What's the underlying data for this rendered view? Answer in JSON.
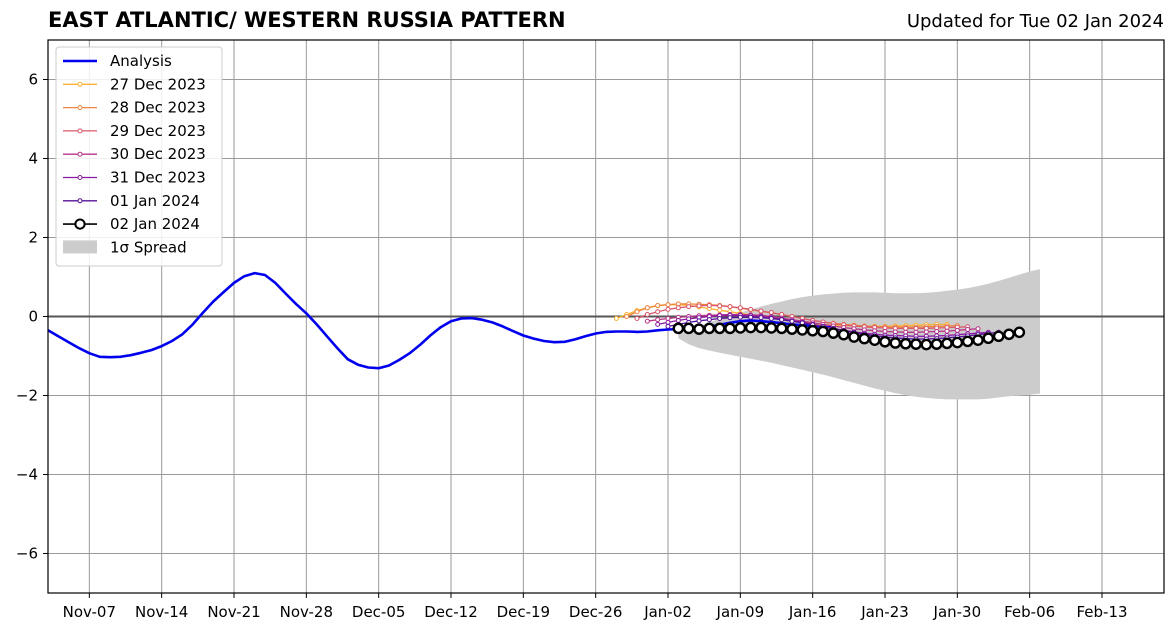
{
  "chart_data": {
    "type": "line",
    "title": "EAST ATLANTIC/ WESTERN RUSSIA PATTERN",
    "subtitle": "Updated for Tue 02 Jan 2024",
    "x_tick_labels": [
      "Nov-07",
      "Nov-14",
      "Nov-21",
      "Nov-28",
      "Dec-05",
      "Dec-12",
      "Dec-19",
      "Dec-26",
      "Jan-02",
      "Jan-09",
      "Jan-16",
      "Jan-23",
      "Jan-30",
      "Feb-06",
      "Feb-13"
    ],
    "x_tick_dates": [
      "2023-11-07",
      "2023-11-14",
      "2023-11-21",
      "2023-11-28",
      "2023-12-05",
      "2023-12-12",
      "2023-12-19",
      "2023-12-26",
      "2024-01-02",
      "2024-01-09",
      "2024-01-16",
      "2024-01-23",
      "2024-01-30",
      "2024-02-06",
      "2024-02-13"
    ],
    "xlim": [
      "2023-11-03",
      "2024-02-19"
    ],
    "ylim": [
      -7,
      7
    ],
    "y_ticks": [
      -6,
      -4,
      -2,
      0,
      2,
      4,
      6
    ],
    "y_tick_labels": [
      "−6",
      "−4",
      "−2",
      "0",
      "2",
      "4",
      "6"
    ],
    "grid": true,
    "legend_position": "upper-left",
    "colors": {
      "analysis": "#0000ee",
      "dec27": "#f9b233",
      "dec28": "#ee8540",
      "dec29": "#d9586b",
      "dec30": "#b83487",
      "dec31": "#8c1aa0",
      "jan01": "#55109a",
      "jan02": "#000000",
      "spread": "#cccccc",
      "grid": "#9a9a9a"
    },
    "series": [
      {
        "name": "Analysis",
        "key": "analysis",
        "style": "thick",
        "start": "2023-11-03",
        "values": [
          -0.35,
          -0.5,
          -0.65,
          -0.8,
          -0.93,
          -1.02,
          -1.03,
          -1.02,
          -0.98,
          -0.92,
          -0.85,
          -0.75,
          -0.62,
          -0.45,
          -0.2,
          0.1,
          0.38,
          0.62,
          0.85,
          1.02,
          1.1,
          1.05,
          0.85,
          0.58,
          0.32,
          0.08,
          -0.2,
          -0.5,
          -0.8,
          -1.08,
          -1.22,
          -1.29,
          -1.31,
          -1.24,
          -1.1,
          -0.93,
          -0.72,
          -0.48,
          -0.27,
          -0.12,
          -0.05,
          -0.04,
          -0.08,
          -0.15,
          -0.25,
          -0.37,
          -0.48,
          -0.56,
          -0.62,
          -0.65,
          -0.64,
          -0.58,
          -0.5,
          -0.43,
          -0.39,
          -0.38,
          -0.38,
          -0.39,
          -0.38,
          -0.35,
          -0.33,
          -0.32,
          -0.32,
          -0.3,
          -0.26,
          -0.21,
          -0.16,
          -0.12,
          -0.1,
          -0.12,
          -0.14,
          -0.17,
          -0.2,
          -0.22,
          -0.24,
          -0.26,
          -0.28
        ]
      },
      {
        "name": "27 Dec 2023",
        "key": "dec27",
        "style": "small-marker",
        "start": "2023-12-28",
        "values": [
          -0.05,
          0.05,
          0.15,
          0.22,
          0.27,
          0.3,
          0.3,
          0.28,
          0.24,
          0.2,
          0.16,
          0.12,
          0.08,
          0.04,
          0.0,
          -0.04,
          -0.08,
          -0.12,
          -0.15,
          -0.18,
          -0.2,
          -0.22,
          -0.23,
          -0.24,
          -0.25,
          -0.25,
          -0.25,
          -0.24,
          -0.23,
          -0.22,
          -0.21,
          -0.2,
          -0.2
        ]
      },
      {
        "name": "28 Dec 2023",
        "key": "dec28",
        "style": "small-marker",
        "start": "2023-12-29",
        "values": [
          0.0,
          0.12,
          0.22,
          0.28,
          0.3,
          0.32,
          0.32,
          0.31,
          0.3,
          0.28,
          0.25,
          0.21,
          0.17,
          0.13,
          0.09,
          0.05,
          0.0,
          -0.05,
          -0.1,
          -0.14,
          -0.17,
          -0.2,
          -0.22,
          -0.24,
          -0.25,
          -0.26,
          -0.27,
          -0.27,
          -0.27,
          -0.26,
          -0.25,
          -0.24,
          -0.23
        ]
      },
      {
        "name": "29 Dec 2023",
        "key": "dec29",
        "style": "small-marker",
        "start": "2023-12-30",
        "values": [
          -0.05,
          0.05,
          0.12,
          0.18,
          0.22,
          0.25,
          0.27,
          0.28,
          0.27,
          0.25,
          0.22,
          0.18,
          0.14,
          0.1,
          0.05,
          0.0,
          -0.05,
          -0.1,
          -0.14,
          -0.18,
          -0.21,
          -0.24,
          -0.26,
          -0.28,
          -0.29,
          -0.3,
          -0.3,
          -0.3,
          -0.3,
          -0.29,
          -0.28,
          -0.27,
          -0.26
        ]
      },
      {
        "name": "30 Dec 2023",
        "key": "dec30",
        "style": "small-marker",
        "start": "2023-12-31",
        "values": [
          -0.12,
          -0.08,
          -0.05,
          -0.02,
          0.0,
          0.02,
          0.03,
          0.04,
          0.05,
          0.05,
          0.04,
          0.03,
          0.0,
          -0.04,
          -0.08,
          -0.12,
          -0.16,
          -0.2,
          -0.24,
          -0.28,
          -0.31,
          -0.34,
          -0.36,
          -0.38,
          -0.39,
          -0.4,
          -0.4,
          -0.39,
          -0.38,
          -0.37,
          -0.35,
          -0.33,
          -0.31
        ]
      },
      {
        "name": "31 Dec 2023",
        "key": "dec31",
        "style": "small-marker",
        "start": "2024-01-01",
        "values": [
          -0.2,
          -0.15,
          -0.1,
          -0.06,
          -0.03,
          0.0,
          0.02,
          0.03,
          0.03,
          0.02,
          0.0,
          -0.03,
          -0.07,
          -0.11,
          -0.15,
          -0.2,
          -0.25,
          -0.3,
          -0.35,
          -0.39,
          -0.42,
          -0.45,
          -0.47,
          -0.48,
          -0.49,
          -0.5,
          -0.5,
          -0.49,
          -0.48,
          -0.46,
          -0.44,
          -0.42,
          -0.4
        ]
      },
      {
        "name": "01 Jan 2024",
        "key": "jan01",
        "style": "small-marker",
        "start": "2024-01-02",
        "values": [
          -0.25,
          -0.2,
          -0.15,
          -0.11,
          -0.08,
          -0.05,
          -0.03,
          -0.02,
          -0.02,
          -0.03,
          -0.05,
          -0.08,
          -0.12,
          -0.16,
          -0.21,
          -0.26,
          -0.31,
          -0.36,
          -0.41,
          -0.45,
          -0.49,
          -0.52,
          -0.54,
          -0.56,
          -0.57,
          -0.57,
          -0.56,
          -0.54,
          -0.52,
          -0.49,
          -0.46,
          -0.43,
          -0.4
        ]
      },
      {
        "name": "02 Jan 2024",
        "key": "jan02",
        "style": "big-marker",
        "start": "2024-01-03",
        "values": [
          -0.3,
          -0.3,
          -0.32,
          -0.3,
          -0.3,
          -0.3,
          -0.29,
          -0.28,
          -0.28,
          -0.29,
          -0.3,
          -0.32,
          -0.34,
          -0.36,
          -0.38,
          -0.42,
          -0.46,
          -0.52,
          -0.56,
          -0.6,
          -0.64,
          -0.67,
          -0.69,
          -0.7,
          -0.71,
          -0.7,
          -0.68,
          -0.66,
          -0.63,
          -0.6,
          -0.55,
          -0.5,
          -0.45,
          -0.4
        ]
      }
    ],
    "spread": {
      "name": "1σ Spread",
      "start": "2024-01-03",
      "step_days": 1,
      "upper": [
        -0.45,
        -0.35,
        -0.25,
        -0.15,
        -0.06,
        0.02,
        0.1,
        0.18,
        0.25,
        0.32,
        0.38,
        0.44,
        0.49,
        0.53,
        0.56,
        0.58,
        0.6,
        0.61,
        0.61,
        0.61,
        0.6,
        0.59,
        0.59,
        0.59,
        0.6,
        0.62,
        0.65,
        0.68,
        0.72,
        0.77,
        0.83,
        0.9,
        0.98,
        1.06,
        1.14,
        1.2
      ],
      "lower": [
        -0.55,
        -0.7,
        -0.8,
        -0.86,
        -0.92,
        -0.97,
        -1.02,
        -1.07,
        -1.12,
        -1.17,
        -1.23,
        -1.29,
        -1.35,
        -1.41,
        -1.47,
        -1.54,
        -1.61,
        -1.68,
        -1.75,
        -1.82,
        -1.88,
        -1.94,
        -1.99,
        -2.03,
        -2.06,
        -2.08,
        -2.1,
        -2.1,
        -2.1,
        -2.1,
        -2.08,
        -2.05,
        -2.02,
        -2.0,
        -1.98,
        -1.95
      ]
    }
  }
}
